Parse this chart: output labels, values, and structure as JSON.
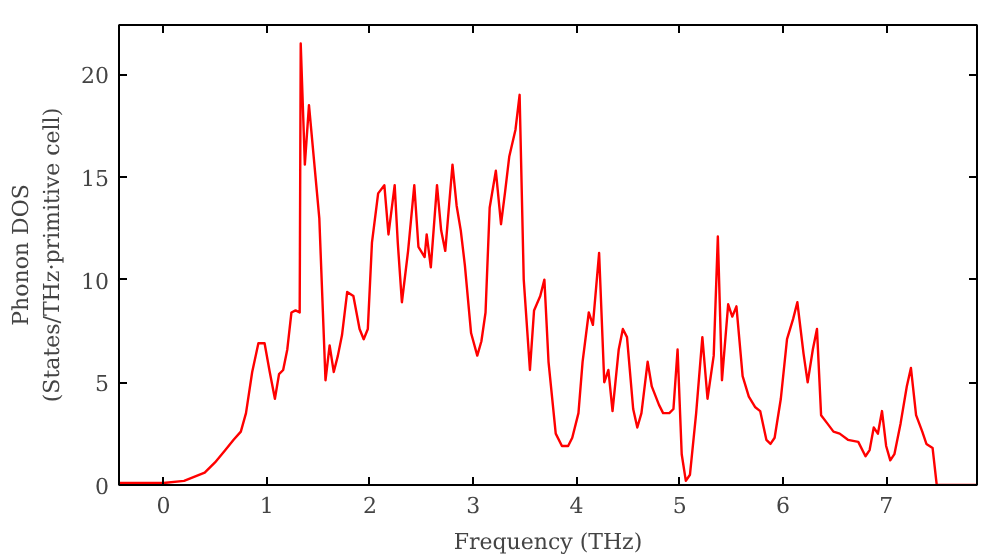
{
  "chart_data": {
    "type": "line",
    "xlabel": "Frequency (THz)",
    "ylabel": "Phonon DOS\n(States/THz·primitive cell)",
    "xlim": [
      -0.43,
      7.88
    ],
    "ylim": [
      0,
      22.4
    ],
    "xticks": [
      0,
      1,
      2,
      3,
      4,
      5,
      6,
      7
    ],
    "yticks": [
      0,
      5,
      10,
      15,
      20
    ],
    "grid": false,
    "series": [
      {
        "color": "#ff0000",
        "x": [
          -0.43,
          0.0,
          0.2,
          0.4,
          0.5,
          0.6,
          0.68,
          0.75,
          0.8,
          0.86,
          0.92,
          0.98,
          1.03,
          1.08,
          1.12,
          1.16,
          1.2,
          1.24,
          1.28,
          1.32,
          1.33,
          1.37,
          1.41,
          1.51,
          1.57,
          1.61,
          1.65,
          1.69,
          1.73,
          1.78,
          1.84,
          1.9,
          1.94,
          1.98,
          2.02,
          2.08,
          2.14,
          2.18,
          2.24,
          2.27,
          2.31,
          2.37,
          2.43,
          2.47,
          2.53,
          2.55,
          2.59,
          2.65,
          2.69,
          2.73,
          2.8,
          2.84,
          2.88,
          2.92,
          2.98,
          3.04,
          3.08,
          3.12,
          3.16,
          3.22,
          3.27,
          3.31,
          3.35,
          3.41,
          3.45,
          3.49,
          3.55,
          3.59,
          3.65,
          3.69,
          3.73,
          3.8,
          3.86,
          3.92,
          3.96,
          4.02,
          4.06,
          4.12,
          4.16,
          4.22,
          4.27,
          4.31,
          4.35,
          4.41,
          4.45,
          4.49,
          4.55,
          4.59,
          4.63,
          4.69,
          4.73,
          4.8,
          4.84,
          4.9,
          4.94,
          4.98,
          5.02,
          5.06,
          5.1,
          5.16,
          5.22,
          5.27,
          5.33,
          5.37,
          5.41,
          5.47,
          5.51,
          5.55,
          5.61,
          5.67,
          5.73,
          5.78,
          5.84,
          5.88,
          5.92,
          5.98,
          6.04,
          6.1,
          6.14,
          6.2,
          6.24,
          6.29,
          6.33,
          6.37,
          6.43,
          6.49,
          6.55,
          6.63,
          6.73,
          6.8,
          6.84,
          6.88,
          6.92,
          6.96,
          7.0,
          7.04,
          7.08,
          7.14,
          7.2,
          7.24,
          7.29,
          7.35,
          7.39,
          7.45,
          7.49,
          7.88
        ],
        "values": [
          0.1,
          0.1,
          0.2,
          0.6,
          1.1,
          1.7,
          2.2,
          2.6,
          3.5,
          5.5,
          6.9,
          6.9,
          5.5,
          4.2,
          5.4,
          5.6,
          6.6,
          8.4,
          8.5,
          8.4,
          21.5,
          15.6,
          18.5,
          13,
          5.1,
          6.8,
          5.5,
          6.3,
          7.3,
          9.4,
          9.2,
          7.6,
          7.1,
          7.6,
          11.8,
          14.2,
          14.6,
          12.2,
          14.6,
          11.8,
          8.9,
          11.4,
          14.6,
          11.6,
          11.1,
          12.2,
          10.6,
          14.6,
          12.4,
          11.4,
          15.6,
          13.6,
          12.4,
          10.7,
          7.4,
          6.3,
          7,
          8.4,
          13.5,
          15.3,
          12.7,
          14.3,
          16,
          17.3,
          19,
          10,
          5.6,
          8.5,
          9.2,
          10,
          6,
          2.5,
          1.9,
          1.9,
          2.3,
          3.5,
          6,
          8.4,
          7.8,
          11.3,
          5,
          5.6,
          3.6,
          6.6,
          7.6,
          7.2,
          3.7,
          2.8,
          3.5,
          6,
          4.8,
          3.9,
          3.5,
          3.5,
          3.7,
          6.6,
          1.5,
          0.2,
          0.5,
          3.5,
          7.2,
          4.2,
          6.3,
          12.1,
          5.1,
          8.8,
          8.2,
          8.7,
          5.3,
          4.3,
          3.8,
          3.6,
          2.2,
          2.0,
          2.3,
          4.2,
          7.1,
          8.1,
          8.9,
          6.4,
          5,
          6.6,
          7.6,
          3.4,
          3,
          2.6,
          2.5,
          2.2,
          2.1,
          1.4,
          1.7,
          2.8,
          2.5,
          3.6,
          1.9,
          1.2,
          1.5,
          3,
          4.8,
          5.7,
          3.4,
          2.6,
          2.0,
          1.8,
          0,
          0
        ]
      }
    ]
  }
}
